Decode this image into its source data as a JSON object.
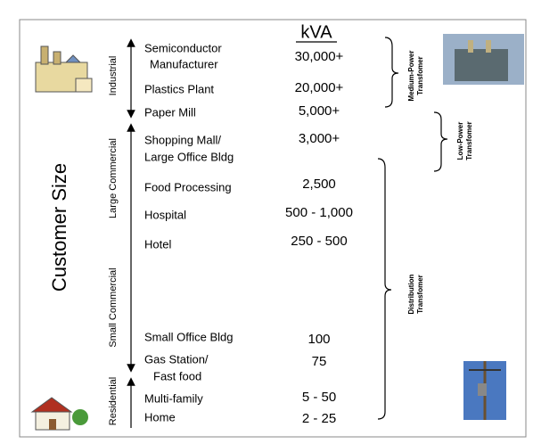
{
  "unit": "kVA",
  "axis_title": "Customer Size",
  "segments": [
    "Industrial",
    "Large Commercial",
    "Small Commercial",
    "Residential"
  ],
  "rows": [
    {
      "lines": [
        "Semiconductor",
        "Manufacturer"
      ],
      "kva": "30,000+"
    },
    {
      "lines": [
        "Plastics Plant"
      ],
      "kva": "20,000+"
    },
    {
      "lines": [
        "Paper Mill"
      ],
      "kva": "5,000+"
    },
    {
      "lines": [
        "Shopping Mall/",
        "Large Office Bldg"
      ],
      "kva": "3,000+"
    },
    {
      "lines": [
        "Food Processing"
      ],
      "kva": "2,500"
    },
    {
      "lines": [
        "Hospital"
      ],
      "kva": "500 - 1,000"
    },
    {
      "lines": [
        "Hotel"
      ],
      "kva": "250 - 500"
    },
    {
      "lines": [
        "Small Office Bldg"
      ],
      "kva": "100"
    },
    {
      "lines": [
        "Gas Station/",
        "Fast food"
      ],
      "kva": "75"
    },
    {
      "lines": [
        "Multi-family"
      ],
      "kva": "5 - 50"
    },
    {
      "lines": [
        "Home"
      ],
      "kva": "2 - 25"
    }
  ],
  "transformers": [
    {
      "lines": [
        "Medium-Power",
        "Transfomer"
      ]
    },
    {
      "lines": [
        "Low-Power",
        "Transfomer"
      ]
    },
    {
      "lines": [
        "Distribution",
        "Transfomer"
      ]
    }
  ]
}
